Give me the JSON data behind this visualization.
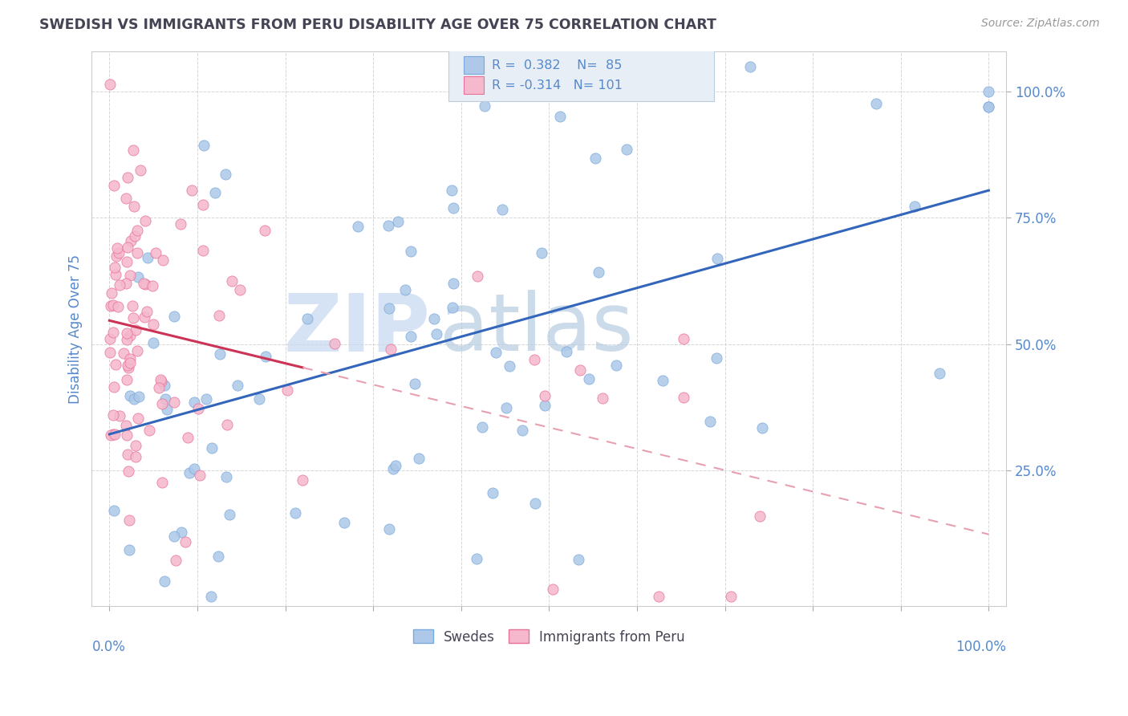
{
  "title": "SWEDISH VS IMMIGRANTS FROM PERU DISABILITY AGE OVER 75 CORRELATION CHART",
  "source": "Source: ZipAtlas.com",
  "ylabel": "Disability Age Over 75",
  "legend_swedes": "Swedes",
  "legend_peru": "Immigrants from Peru",
  "R_swedes": 0.382,
  "N_swedes": 85,
  "R_peru": -0.314,
  "N_peru": 101,
  "swedes_color": "#adc8e8",
  "swedes_edge": "#7aaadd",
  "peru_color": "#f5b8cc",
  "peru_edge": "#e87099",
  "trend_swedes_color": "#3366bb",
  "trend_peru_solid_color": "#cc3355",
  "trend_peru_dash_color": "#e8a0b0",
  "watermark_zip": "ZIP",
  "watermark_atlas": "atlas",
  "watermark_color_zip": "#c8d8ec",
  "watermark_color_atlas": "#b8c8dc",
  "title_color": "#444455",
  "axis_label_color": "#5588cc",
  "tick_color": "#5588cc",
  "background_color": "#ffffff",
  "grid_color": "#cccccc",
  "legend_box_color": "#e8eef5",
  "legend_border_color": "#bbccdd",
  "swedes_seed": 9999,
  "peru_seed": 8888
}
